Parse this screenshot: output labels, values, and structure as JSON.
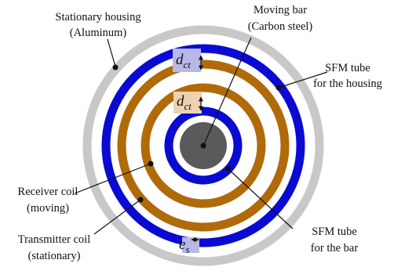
{
  "labels": {
    "housing_line1": "Stationary housing",
    "housing_line2": "(Aluminum)",
    "bar_line1": "Moving bar",
    "bar_line2": "(Carbon steel)",
    "sfm_housing_line1": "SFM tube",
    "sfm_housing_line2": "for the housing",
    "receiver_line1": "Receiver coil",
    "receiver_line2": "(moving)",
    "transmitter_line1": "Transmitter coil",
    "transmitter_line2": "(stationary)",
    "sfm_bar_line1": "SFM tube",
    "sfm_bar_line2": "for the bar"
  },
  "symbols": {
    "dct_main": "d",
    "dct_sub": "ct",
    "es_main": "e",
    "es_sub": "s"
  },
  "colors": {
    "housing": "#c8c8c8",
    "sfm_tube": "#0a0ad2",
    "coil": "#b06a0a",
    "bar": "#5a5a5a",
    "gap_highlight_blue": "#b8b8e8",
    "gap_highlight_brown": "#ecd2b0"
  }
}
